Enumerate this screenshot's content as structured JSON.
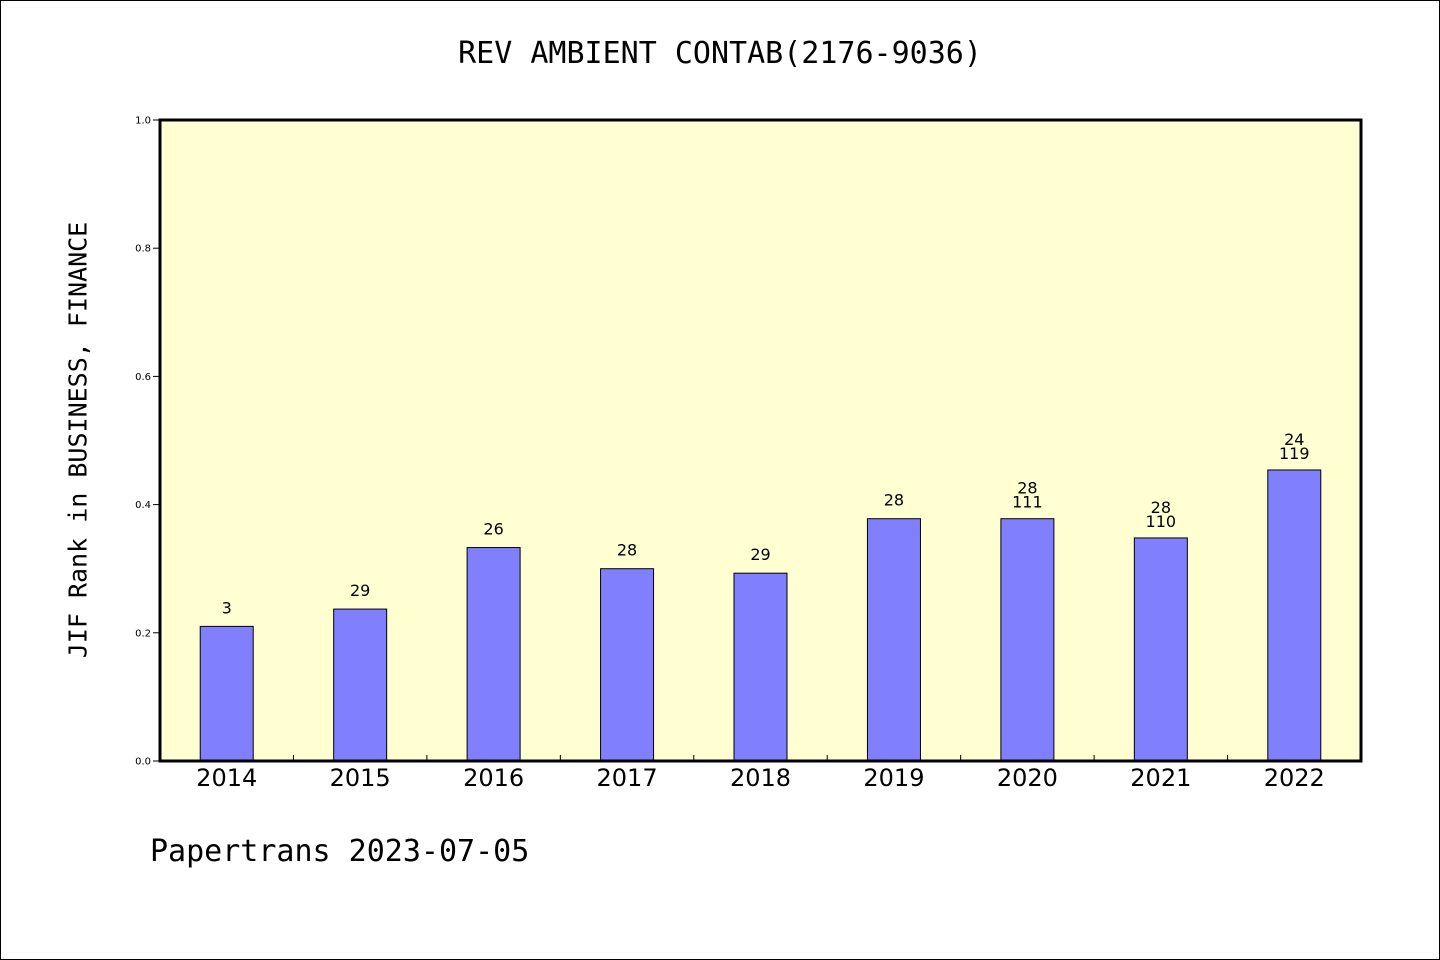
{
  "chart_data": {
    "type": "bar",
    "title": "REV AMBIENT CONTAB(2176-9036)",
    "ylabel": "JIF Rank in BUSINESS, FINANCE",
    "xlabel": "",
    "ylim": [
      0.0,
      1.0
    ],
    "yticks": [
      "0.0",
      "0.2",
      "0.4",
      "0.6",
      "0.8",
      "1.0"
    ],
    "grid": false,
    "plot_background": "#ffffd2",
    "bar_color": "#8080ff",
    "categories": [
      "2014",
      "2015",
      "2016",
      "2017",
      "2018",
      "2019",
      "2020",
      "2021",
      "2022"
    ],
    "values": [
      0.21,
      0.237,
      0.333,
      0.3,
      0.293,
      0.378,
      0.378,
      0.348,
      0.454
    ],
    "bar_labels": [
      [
        "3"
      ],
      [
        "29"
      ],
      [
        "26"
      ],
      [
        "28"
      ],
      [
        "29"
      ],
      [
        "28"
      ],
      [
        "28",
        "111"
      ],
      [
        "28",
        "110"
      ],
      [
        "24",
        "119"
      ]
    ]
  },
  "footer": "Papertrans 2023-07-05"
}
